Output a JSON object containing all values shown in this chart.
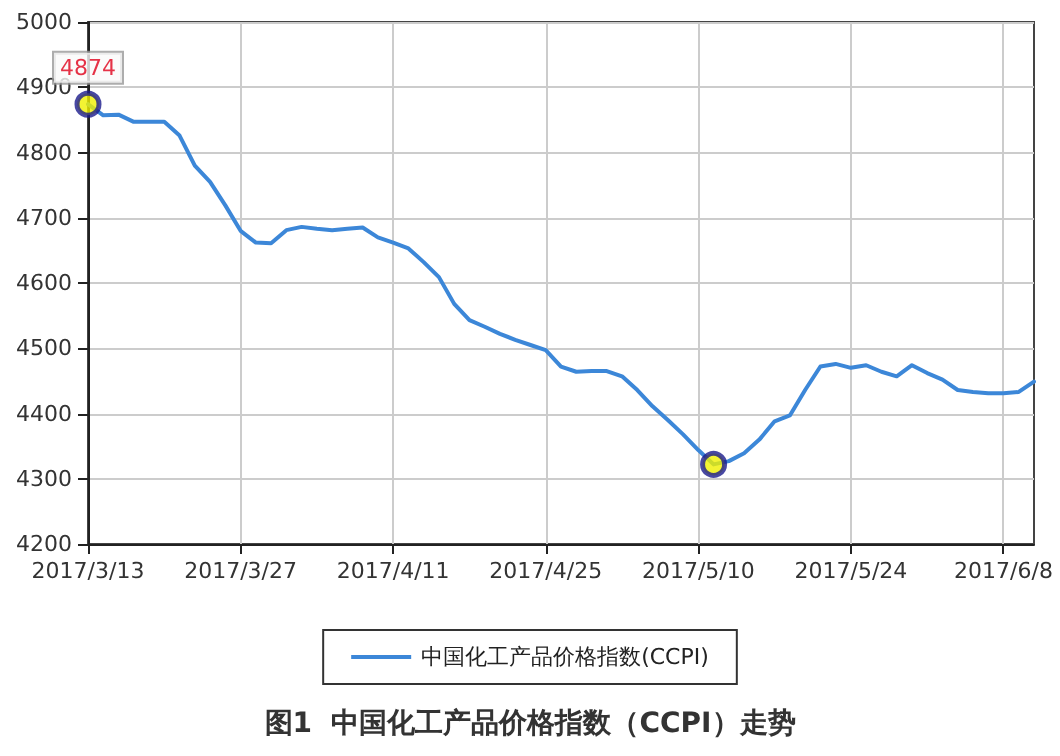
{
  "chart_data": {
    "type": "line",
    "title": "图1  中国化工产品价格指数（CCPI）走势",
    "categories": [
      "2017/3/13",
      null,
      null,
      null,
      null,
      null,
      null,
      null,
      null,
      null,
      "2017/3/27",
      null,
      null,
      null,
      null,
      null,
      null,
      null,
      null,
      null,
      "2017/4/11",
      null,
      null,
      null,
      null,
      null,
      null,
      null,
      null,
      null,
      "2017/4/25",
      null,
      null,
      null,
      null,
      null,
      null,
      null,
      null,
      null,
      "2017/5/10",
      null,
      null,
      null,
      null,
      null,
      null,
      null,
      null,
      null,
      "2017/5/24",
      null,
      null,
      null,
      null,
      null,
      null,
      null,
      null,
      null,
      "2017/6/8",
      null,
      null
    ],
    "series": [
      {
        "name": "中国化工产品价格指数(CCPI)",
        "color": "#3c87d8",
        "values": [
          4874,
          4857,
          4858,
          4847,
          4847,
          4847,
          4826,
          4780,
          4755,
          4719,
          4680,
          4662,
          4661,
          4681,
          4686,
          4683,
          4681,
          4683,
          4685,
          4670,
          4662,
          4653,
          4632,
          4609,
          4568,
          4543,
          4533,
          4522,
          4513,
          4505,
          4497,
          4472,
          4464,
          4465,
          4465,
          4457,
          4436,
          4411,
          4390,
          4368,
          4344,
          4322,
          4327,
          4339,
          4360,
          4388,
          4397,
          4436,
          4472,
          4476,
          4470,
          4474,
          4464,
          4457,
          4474,
          4462,
          4452,
          4436,
          4433,
          4431,
          4431,
          4433,
          4449
        ]
      },
      {
        "type": "scatter",
        "color": "#f0f000",
        "marker": "circle",
        "values": [
          4874,
          null,
          null,
          null,
          null,
          null,
          null,
          null,
          null,
          null,
          null,
          null,
          null,
          null,
          null,
          null,
          null,
          null,
          null,
          null,
          null,
          null,
          null,
          null,
          null,
          null,
          null,
          null,
          null,
          null,
          null,
          null,
          null,
          null,
          null,
          null,
          null,
          null,
          null,
          null,
          null,
          4322,
          null,
          null,
          null,
          null,
          null,
          null,
          null,
          null,
          null,
          null,
          null,
          null,
          null,
          null,
          null,
          null,
          null,
          null,
          null,
          null,
          null
        ],
        "value_labels": [
          "4874",
          null,
          null,
          null,
          null,
          null,
          null,
          null,
          null,
          null,
          null,
          null,
          null,
          null,
          null,
          null,
          null,
          null,
          null,
          null,
          null,
          null,
          null,
          null,
          null,
          null,
          null,
          null,
          null,
          null,
          null,
          null,
          null,
          null,
          null,
          null,
          null,
          null,
          null,
          null,
          null,
          null,
          null,
          null,
          null,
          null,
          null,
          null,
          null,
          null,
          null,
          null,
          null,
          null,
          null,
          null,
          null,
          null,
          null,
          null,
          null,
          null,
          null
        ]
      }
    ],
    "ylim": [
      4200,
      5000
    ],
    "yticks": [
      4200,
      4300,
      4400,
      4500,
      4600,
      4700,
      4800,
      4900,
      5000
    ],
    "grid": true,
    "legend": "bottom",
    "marker": "none",
    "line_style": "solid"
  }
}
